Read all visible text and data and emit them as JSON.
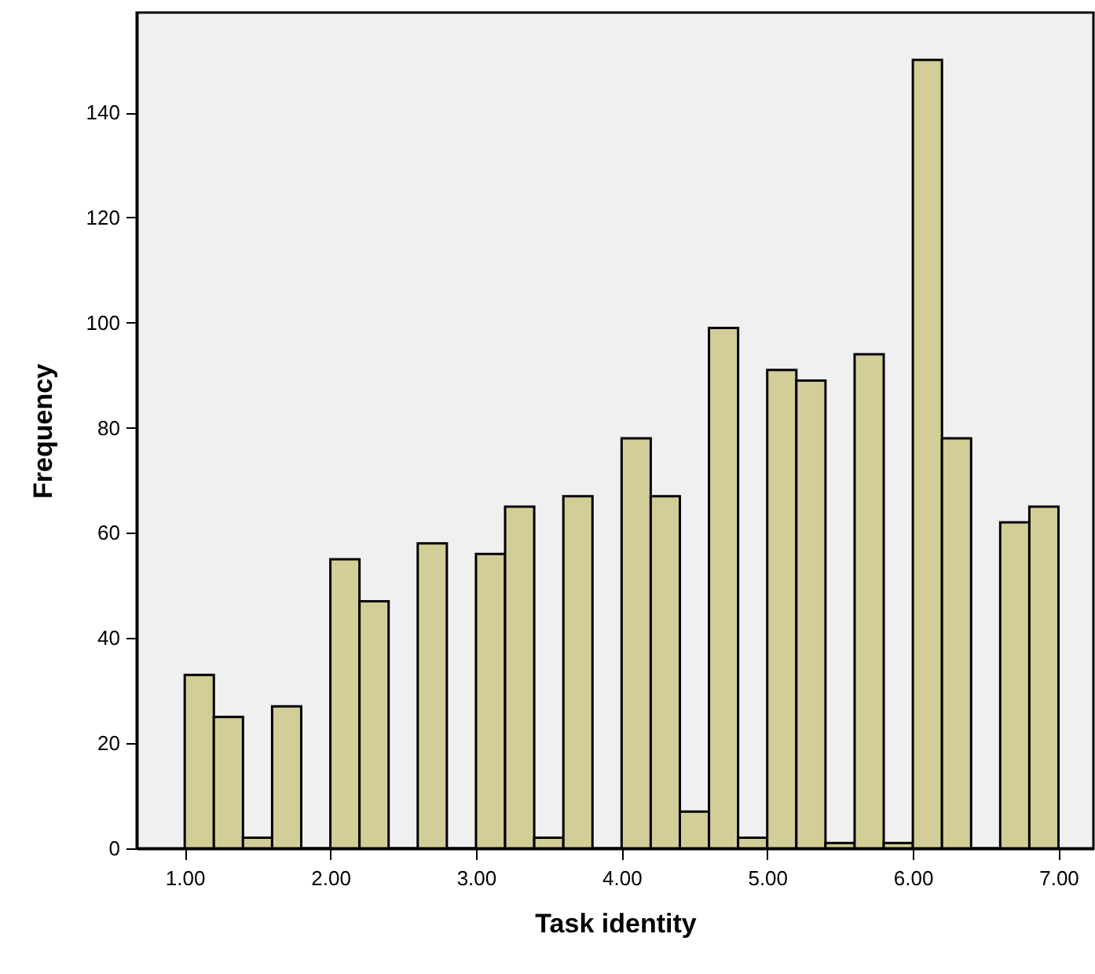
{
  "chart_data": {
    "type": "histogram",
    "xlabel": "Task identity",
    "ylabel": "Frequency",
    "color": "#d3ce97",
    "bins": [
      1.0,
      1.2,
      1.4,
      1.6,
      1.8,
      2.0,
      2.2,
      2.4,
      2.6,
      2.8,
      3.0,
      3.2,
      3.4,
      3.6,
      3.8,
      4.0,
      4.2,
      4.4,
      4.6,
      4.8,
      5.0,
      5.2,
      5.4,
      5.6,
      5.8,
      6.0,
      6.2,
      6.4,
      6.6,
      6.8,
      7.0
    ],
    "values": [
      33,
      25,
      2,
      27,
      0,
      55,
      47,
      0,
      58,
      0,
      56,
      65,
      2,
      67,
      0,
      78,
      67,
      7,
      99,
      2,
      91,
      89,
      1,
      94,
      1,
      150,
      78,
      0,
      62,
      65
    ],
    "xlim": [
      0.67,
      7.24
    ],
    "ylim": [
      0,
      159
    ],
    "xticks": [
      {
        "value": 1,
        "label": "1.00"
      },
      {
        "value": 2,
        "label": "2.00"
      },
      {
        "value": 3,
        "label": "3.00"
      },
      {
        "value": 4,
        "label": "4.00"
      },
      {
        "value": 5,
        "label": "5.00"
      },
      {
        "value": 6,
        "label": "6.00"
      },
      {
        "value": 7,
        "label": "7.00"
      }
    ],
    "yticks": [
      0,
      20,
      40,
      60,
      80,
      100,
      120,
      140
    ]
  }
}
